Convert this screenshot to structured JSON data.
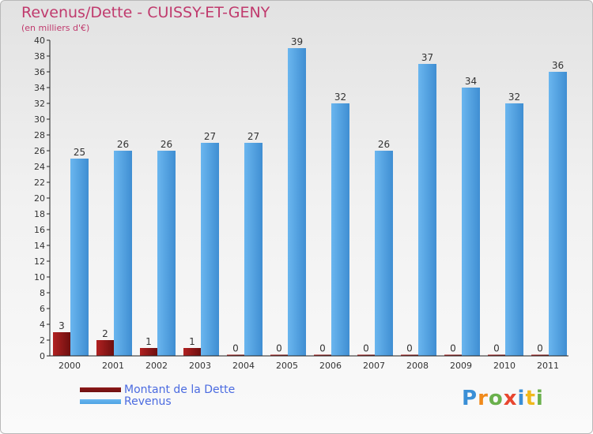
{
  "title": "Revenus/Dette - CUISSY-ET-GENY",
  "subtitle": "(en milliers d'€)",
  "logo_text": "Proxiti",
  "colors": {
    "dette": "#6d0f0f",
    "revenus": "#4ea3e3",
    "title": "#c03a6d",
    "legend_text": "#4b6be0"
  },
  "legend": {
    "dette_label": "Montant de la Dette",
    "revenus_label": "Revenus"
  },
  "chart_data": {
    "type": "bar",
    "title": "Revenus/Dette - CUISSY-ET-GENY",
    "ylabel": "(en milliers d'€)",
    "categories": [
      "2000",
      "2001",
      "2002",
      "2003",
      "2004",
      "2005",
      "2006",
      "2007",
      "2008",
      "2009",
      "2010",
      "2011"
    ],
    "series": [
      {
        "name": "Montant de la Dette",
        "values": [
          3,
          2,
          1,
          1,
          0,
          0,
          0,
          0,
          0,
          0,
          0,
          0
        ]
      },
      {
        "name": "Revenus",
        "values": [
          25,
          26,
          26,
          27,
          27,
          39,
          32,
          26,
          37,
          34,
          32,
          36
        ]
      }
    ],
    "ylim": [
      0,
      40
    ],
    "yticks": [
      0,
      2,
      4,
      6,
      8,
      10,
      12,
      14,
      16,
      18,
      20,
      22,
      24,
      26,
      28,
      30,
      32,
      34,
      36,
      38,
      40
    ],
    "grid": false,
    "legend_position": "bottom-left"
  }
}
